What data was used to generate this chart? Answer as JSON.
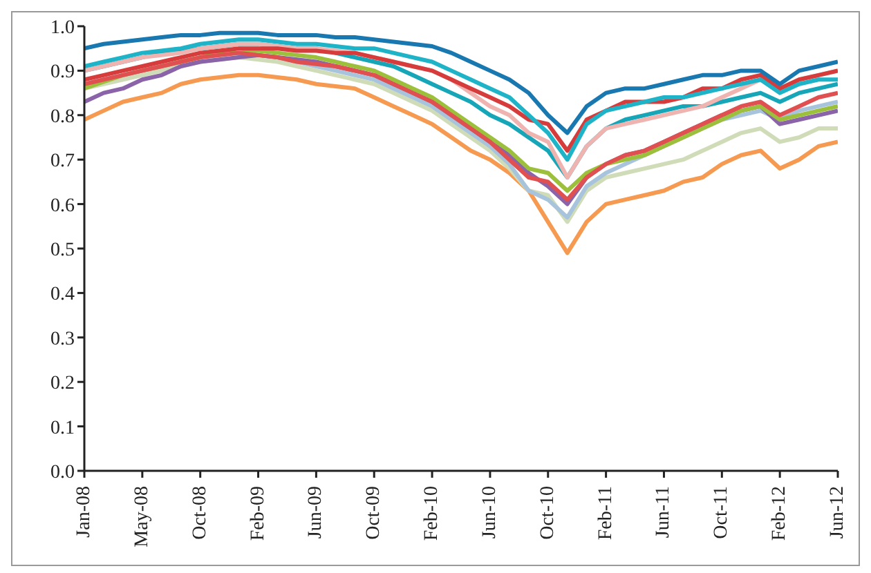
{
  "chart_data": {
    "type": "line",
    "categories": [
      "Jan-08",
      null,
      null,
      "May-08",
      null,
      null,
      "Oct-08",
      null,
      null,
      "Feb-09",
      null,
      null,
      "Jun-09",
      null,
      null,
      "Oct-09",
      null,
      null,
      "Feb-10",
      null,
      null,
      "Jun-10",
      null,
      null,
      "Oct-10",
      null,
      null,
      "Feb-11",
      null,
      null,
      "Jun-11",
      null,
      null,
      "Oct-11",
      null,
      null,
      "Feb-12",
      null,
      null,
      "Jun-12"
    ],
    "ylim": [
      0,
      1
    ],
    "yticks": [
      {
        "value": 0,
        "label": "0.0"
      },
      {
        "value": 0.1,
        "label": "0.1"
      },
      {
        "value": 0.2,
        "label": "0.2"
      },
      {
        "value": 0.3,
        "label": "0.3"
      },
      {
        "value": 0.4,
        "label": "0.4"
      },
      {
        "value": 0.5,
        "label": "0.5"
      },
      {
        "value": 0.6,
        "label": "0.6"
      },
      {
        "value": 0.7,
        "label": "0.7"
      },
      {
        "value": 0.8,
        "label": "0.8"
      },
      {
        "value": 0.9,
        "label": "0.9"
      },
      {
        "value": 1,
        "label": "1.0"
      }
    ],
    "grid": false,
    "legend": false,
    "marker": "none",
    "line_style": "solid",
    "series": [
      {
        "color": "#f59a50",
        "values": [
          0.79,
          0.81,
          0.83,
          0.84,
          0.85,
          0.87,
          0.88,
          0.885,
          0.89,
          0.89,
          0.885,
          0.88,
          0.87,
          0.865,
          0.86,
          0.84,
          0.82,
          0.8,
          0.78,
          0.75,
          0.72,
          0.7,
          0.67,
          0.63,
          0.56,
          0.49,
          0.56,
          0.6,
          0.61,
          0.62,
          0.63,
          0.65,
          0.66,
          0.69,
          0.71,
          0.72,
          0.68,
          0.7,
          0.73,
          0.74
        ]
      },
      {
        "color": "#d0dcb8",
        "values": [
          0.86,
          0.87,
          0.88,
          0.89,
          0.9,
          0.91,
          0.92,
          0.925,
          0.93,
          0.925,
          0.92,
          0.91,
          0.9,
          0.89,
          0.88,
          0.87,
          0.85,
          0.83,
          0.81,
          0.78,
          0.75,
          0.72,
          0.68,
          0.63,
          0.62,
          0.56,
          0.63,
          0.66,
          0.67,
          0.68,
          0.69,
          0.7,
          0.72,
          0.74,
          0.76,
          0.77,
          0.74,
          0.75,
          0.77,
          0.77
        ]
      },
      {
        "color": "#a8c4dc",
        "values": [
          0.87,
          0.88,
          0.89,
          0.9,
          0.91,
          0.92,
          0.93,
          0.935,
          0.94,
          0.935,
          0.93,
          0.92,
          0.91,
          0.9,
          0.89,
          0.88,
          0.86,
          0.84,
          0.82,
          0.79,
          0.76,
          0.73,
          0.69,
          0.63,
          0.61,
          0.57,
          0.64,
          0.67,
          0.69,
          0.71,
          0.73,
          0.75,
          0.77,
          0.79,
          0.8,
          0.81,
          0.79,
          0.81,
          0.82,
          0.83
        ]
      },
      {
        "color": "#8a63a8",
        "values": [
          0.83,
          0.85,
          0.86,
          0.88,
          0.89,
          0.91,
          0.92,
          0.925,
          0.93,
          0.935,
          0.93,
          0.925,
          0.92,
          0.91,
          0.9,
          0.89,
          0.87,
          0.85,
          0.83,
          0.8,
          0.77,
          0.74,
          0.71,
          0.67,
          0.64,
          0.6,
          0.66,
          0.69,
          0.71,
          0.72,
          0.74,
          0.76,
          0.78,
          0.8,
          0.81,
          0.82,
          0.78,
          0.79,
          0.8,
          0.81
        ]
      },
      {
        "color": "#9cbf3c",
        "values": [
          0.86,
          0.875,
          0.89,
          0.9,
          0.91,
          0.92,
          0.93,
          0.94,
          0.94,
          0.945,
          0.94,
          0.935,
          0.93,
          0.92,
          0.91,
          0.9,
          0.88,
          0.86,
          0.84,
          0.81,
          0.78,
          0.75,
          0.72,
          0.68,
          0.67,
          0.63,
          0.67,
          0.69,
          0.7,
          0.71,
          0.73,
          0.75,
          0.77,
          0.79,
          0.81,
          0.82,
          0.79,
          0.8,
          0.81,
          0.82
        ]
      },
      {
        "color": "#e05050",
        "values": [
          0.87,
          0.88,
          0.89,
          0.9,
          0.91,
          0.92,
          0.93,
          0.935,
          0.94,
          0.935,
          0.93,
          0.92,
          0.915,
          0.91,
          0.9,
          0.89,
          0.87,
          0.85,
          0.83,
          0.8,
          0.77,
          0.74,
          0.7,
          0.66,
          0.65,
          0.61,
          0.66,
          0.69,
          0.71,
          0.72,
          0.74,
          0.76,
          0.78,
          0.8,
          0.82,
          0.83,
          0.8,
          0.82,
          0.84,
          0.85
        ]
      },
      {
        "color": "#17a5b8",
        "values": [
          0.9,
          0.91,
          0.92,
          0.93,
          0.94,
          0.945,
          0.95,
          0.955,
          0.96,
          0.96,
          0.955,
          0.95,
          0.95,
          0.94,
          0.93,
          0.92,
          0.91,
          0.89,
          0.87,
          0.85,
          0.83,
          0.8,
          0.78,
          0.75,
          0.72,
          0.66,
          0.73,
          0.77,
          0.79,
          0.8,
          0.81,
          0.82,
          0.82,
          0.83,
          0.84,
          0.85,
          0.83,
          0.85,
          0.86,
          0.87
        ]
      },
      {
        "color": "#f0b4b0",
        "values": [
          0.9,
          0.91,
          0.92,
          0.93,
          0.935,
          0.94,
          0.95,
          0.955,
          0.96,
          0.96,
          0.955,
          0.95,
          0.95,
          0.945,
          0.94,
          0.93,
          0.92,
          0.91,
          0.9,
          0.88,
          0.85,
          0.82,
          0.8,
          0.76,
          0.74,
          0.66,
          0.73,
          0.77,
          0.78,
          0.79,
          0.8,
          0.81,
          0.82,
          0.84,
          0.86,
          0.88,
          0.86,
          0.88,
          0.89,
          0.9
        ]
      },
      {
        "color": "#d63c3c",
        "values": [
          0.88,
          0.89,
          0.9,
          0.91,
          0.92,
          0.93,
          0.94,
          0.945,
          0.95,
          0.95,
          0.95,
          0.945,
          0.945,
          0.94,
          0.94,
          0.93,
          0.92,
          0.91,
          0.9,
          0.88,
          0.86,
          0.84,
          0.82,
          0.79,
          0.78,
          0.72,
          0.79,
          0.81,
          0.83,
          0.83,
          0.83,
          0.84,
          0.86,
          0.86,
          0.88,
          0.89,
          0.86,
          0.88,
          0.89,
          0.9
        ]
      },
      {
        "color": "#1fb3c8",
        "values": [
          0.91,
          0.92,
          0.93,
          0.94,
          0.945,
          0.95,
          0.96,
          0.965,
          0.97,
          0.97,
          0.965,
          0.96,
          0.96,
          0.955,
          0.95,
          0.95,
          0.94,
          0.93,
          0.92,
          0.9,
          0.88,
          0.86,
          0.84,
          0.8,
          0.76,
          0.7,
          0.78,
          0.81,
          0.82,
          0.83,
          0.84,
          0.84,
          0.85,
          0.86,
          0.87,
          0.88,
          0.85,
          0.87,
          0.88,
          0.88
        ]
      },
      {
        "color": "#1a78b0",
        "values": [
          0.95,
          0.96,
          0.965,
          0.97,
          0.975,
          0.98,
          0.98,
          0.985,
          0.985,
          0.985,
          0.98,
          0.98,
          0.98,
          0.975,
          0.975,
          0.97,
          0.965,
          0.96,
          0.955,
          0.94,
          0.92,
          0.9,
          0.88,
          0.85,
          0.8,
          0.76,
          0.82,
          0.85,
          0.86,
          0.86,
          0.87,
          0.88,
          0.89,
          0.89,
          0.9,
          0.9,
          0.87,
          0.9,
          0.91,
          0.92
        ]
      }
    ]
  }
}
